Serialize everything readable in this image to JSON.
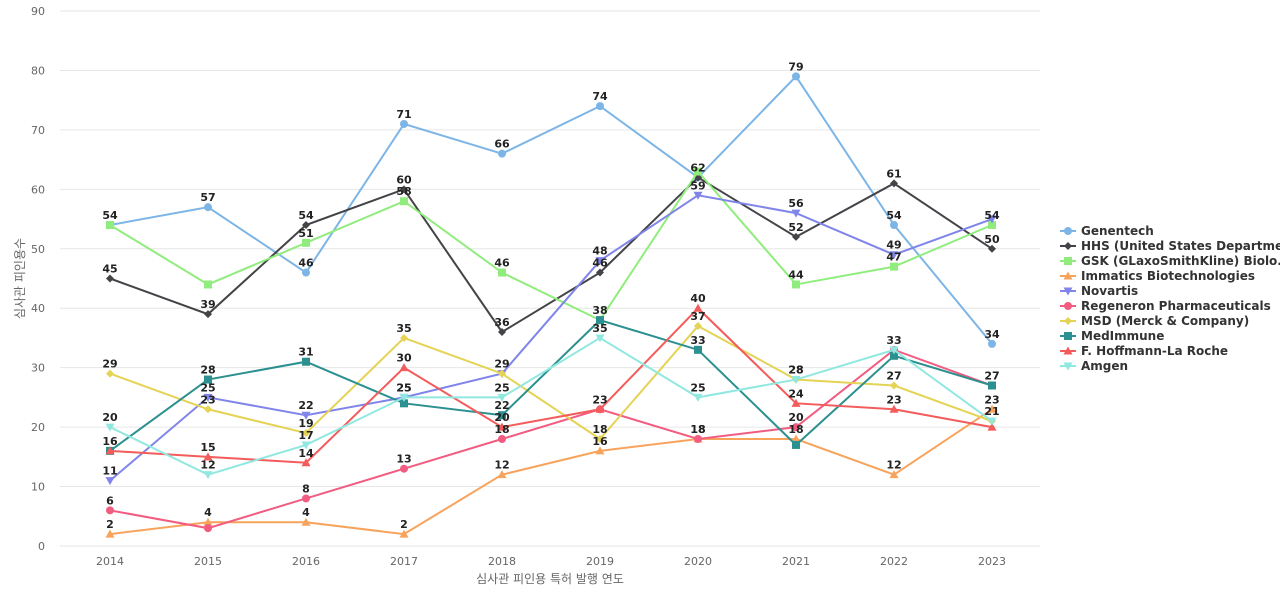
{
  "chart_data": {
    "type": "line",
    "x": [
      2014,
      2015,
      2016,
      2017,
      2018,
      2019,
      2020,
      2021,
      2022,
      2023
    ],
    "xlabel": "심사관 피인용 특허 발행 연도",
    "ylabel": "심사관 피인용수",
    "ylim": [
      0,
      90
    ],
    "yticks": [
      0,
      10,
      20,
      30,
      40,
      50,
      60,
      70,
      80,
      90
    ],
    "grid": true,
    "legend_position": "right",
    "series": [
      {
        "name": "Genentech",
        "color": "#7cb5e6",
        "marker": "circle",
        "values": [
          54,
          57,
          46,
          71,
          66,
          74,
          62,
          79,
          54,
          34
        ]
      },
      {
        "name": "HHS (United States Departme...",
        "color": "#434348",
        "marker": "diamond",
        "values": [
          45,
          39,
          54,
          60,
          36,
          46,
          62,
          52,
          61,
          50
        ]
      },
      {
        "name": "GSK (GLaxoSmithKline) Biolo...",
        "color": "#90ed7d",
        "marker": "square",
        "values": [
          54,
          44,
          51,
          58,
          46,
          38,
          63,
          44,
          47,
          54
        ]
      },
      {
        "name": "Immatics Biotechnologies",
        "color": "#f7a35c",
        "marker": "triangle",
        "values": [
          2,
          4,
          4,
          2,
          12,
          16,
          18,
          18,
          12,
          23
        ]
      },
      {
        "name": "Novartis",
        "color": "#8085e9",
        "marker": "triangle-down",
        "values": [
          11,
          25,
          22,
          25,
          29,
          48,
          59,
          56,
          49,
          55
        ]
      },
      {
        "name": "Regeneron Pharmaceuticals",
        "color": "#f15c80",
        "marker": "circle",
        "values": [
          6,
          3,
          8,
          13,
          18,
          23,
          18,
          20,
          33,
          27
        ]
      },
      {
        "name": "MSD (Merck & Company)",
        "color": "#e4d354",
        "marker": "diamond",
        "values": [
          29,
          23,
          19,
          35,
          29,
          18,
          37,
          28,
          27,
          21
        ]
      },
      {
        "name": "MedImmune",
        "color": "#2b908f",
        "marker": "square",
        "values": [
          16,
          28,
          31,
          24,
          22,
          38,
          33,
          17,
          32,
          27
        ]
      },
      {
        "name": "F. Hoffmann-La Roche",
        "color": "#f45b5b",
        "marker": "triangle",
        "values": [
          16,
          15,
          14,
          30,
          20,
          23,
          40,
          24,
          23,
          20
        ]
      },
      {
        "name": "Amgen",
        "color": "#91e8e1",
        "marker": "triangle-down",
        "values": [
          20,
          12,
          17,
          25,
          25,
          35,
          25,
          28,
          33,
          21
        ]
      }
    ],
    "data_labels": [
      {
        "series": 0,
        "x": 2014,
        "text": "54"
      },
      {
        "series": 0,
        "x": 2015,
        "text": "57"
      },
      {
        "series": 0,
        "x": 2016,
        "text": "46"
      },
      {
        "series": 0,
        "x": 2017,
        "text": "71"
      },
      {
        "series": 0,
        "x": 2018,
        "text": "66"
      },
      {
        "series": 0,
        "x": 2019,
        "text": "74"
      },
      {
        "series": 0,
        "x": 2020,
        "text": "62"
      },
      {
        "series": 0,
        "x": 2021,
        "text": "79"
      },
      {
        "series": 0,
        "x": 2022,
        "text": "54"
      },
      {
        "series": 0,
        "x": 2023,
        "text": "34"
      },
      {
        "series": 1,
        "x": 2014,
        "text": "45"
      },
      {
        "series": 1,
        "x": 2015,
        "text": "39"
      },
      {
        "series": 1,
        "x": 2016,
        "text": "54"
      },
      {
        "series": 1,
        "x": 2017,
        "text": "60"
      },
      {
        "series": 1,
        "x": 2018,
        "text": "36"
      },
      {
        "series": 1,
        "x": 2019,
        "text": "46"
      },
      {
        "series": 1,
        "x": 2021,
        "text": "52"
      },
      {
        "series": 1,
        "x": 2022,
        "text": "61"
      },
      {
        "series": 1,
        "x": 2023,
        "text": "50"
      },
      {
        "series": 2,
        "x": 2016,
        "text": "51"
      },
      {
        "series": 2,
        "x": 2017,
        "text": "58"
      },
      {
        "series": 2,
        "x": 2018,
        "text": "46"
      },
      {
        "series": 2,
        "x": 2021,
        "text": "44"
      },
      {
        "series": 2,
        "x": 2022,
        "text": "47"
      },
      {
        "series": 2,
        "x": 2023,
        "text": "54"
      },
      {
        "series": 3,
        "x": 2014,
        "text": "2"
      },
      {
        "series": 3,
        "x": 2015,
        "text": "4"
      },
      {
        "series": 3,
        "x": 2016,
        "text": "4"
      },
      {
        "series": 3,
        "x": 2017,
        "text": "2"
      },
      {
        "series": 3,
        "x": 2018,
        "text": "12"
      },
      {
        "series": 3,
        "x": 2019,
        "text": "16"
      },
      {
        "series": 3,
        "x": 2020,
        "text": "18"
      },
      {
        "series": 3,
        "x": 2021,
        "text": "18"
      },
      {
        "series": 3,
        "x": 2022,
        "text": "12"
      },
      {
        "series": 3,
        "x": 2023,
        "text": "23"
      },
      {
        "series": 4,
        "x": 2014,
        "text": "11"
      },
      {
        "series": 4,
        "x": 2015,
        "text": "25"
      },
      {
        "series": 4,
        "x": 2016,
        "text": "22"
      },
      {
        "series": 4,
        "x": 2017,
        "text": "25"
      },
      {
        "series": 4,
        "x": 2018,
        "text": "29"
      },
      {
        "series": 4,
        "x": 2019,
        "text": "48"
      },
      {
        "series": 4,
        "x": 2020,
        "text": "59"
      },
      {
        "series": 4,
        "x": 2021,
        "text": "56"
      },
      {
        "series": 4,
        "x": 2022,
        "text": "49"
      },
      {
        "series": 5,
        "x": 2014,
        "text": "6"
      },
      {
        "series": 5,
        "x": 2016,
        "text": "8"
      },
      {
        "series": 5,
        "x": 2017,
        "text": "13"
      },
      {
        "series": 5,
        "x": 2018,
        "text": "18"
      },
      {
        "series": 5,
        "x": 2019,
        "text": "23"
      },
      {
        "series": 5,
        "x": 2020,
        "text": "18"
      },
      {
        "series": 5,
        "x": 2021,
        "text": "20"
      },
      {
        "series": 5,
        "x": 2022,
        "text": "33"
      },
      {
        "series": 5,
        "x": 2023,
        "text": "27"
      },
      {
        "series": 6,
        "x": 2014,
        "text": "29"
      },
      {
        "series": 6,
        "x": 2015,
        "text": "23"
      },
      {
        "series": 6,
        "x": 2016,
        "text": "19"
      },
      {
        "series": 6,
        "x": 2017,
        "text": "35"
      },
      {
        "series": 6,
        "x": 2019,
        "text": "18"
      },
      {
        "series": 6,
        "x": 2020,
        "text": "37"
      },
      {
        "series": 6,
        "x": 2021,
        "text": "28"
      },
      {
        "series": 6,
        "x": 2022,
        "text": "27"
      },
      {
        "series": 6,
        "x": 2023,
        "text": "21"
      },
      {
        "series": 7,
        "x": 2014,
        "text": "16"
      },
      {
        "series": 7,
        "x": 2015,
        "text": "28"
      },
      {
        "series": 7,
        "x": 2016,
        "text": "31"
      },
      {
        "series": 7,
        "x": 2018,
        "text": "22"
      },
      {
        "series": 7,
        "x": 2019,
        "text": "38"
      },
      {
        "series": 7,
        "x": 2020,
        "text": "33"
      },
      {
        "series": 8,
        "x": 2015,
        "text": "15"
      },
      {
        "series": 8,
        "x": 2016,
        "text": "14"
      },
      {
        "series": 8,
        "x": 2017,
        "text": "30"
      },
      {
        "series": 8,
        "x": 2018,
        "text": "20"
      },
      {
        "series": 8,
        "x": 2020,
        "text": "40"
      },
      {
        "series": 8,
        "x": 2021,
        "text": "24"
      },
      {
        "series": 8,
        "x": 2022,
        "text": "23"
      },
      {
        "series": 9,
        "x": 2014,
        "text": "20"
      },
      {
        "series": 9,
        "x": 2015,
        "text": "12"
      },
      {
        "series": 9,
        "x": 2016,
        "text": "17"
      },
      {
        "series": 9,
        "x": 2017,
        "text": "25"
      },
      {
        "series": 9,
        "x": 2018,
        "text": "25"
      },
      {
        "series": 9,
        "x": 2019,
        "text": "35"
      },
      {
        "series": 9,
        "x": 2020,
        "text": "25"
      },
      {
        "series": 9,
        "x": 2021,
        "text": "28"
      }
    ]
  }
}
